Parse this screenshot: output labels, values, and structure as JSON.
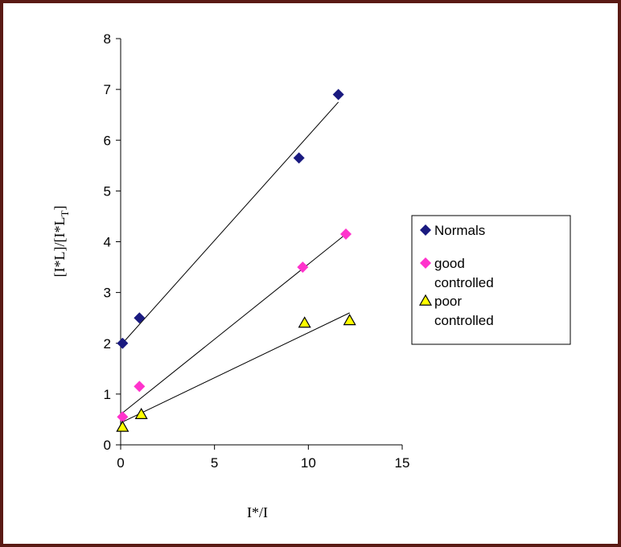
{
  "chart_data": {
    "type": "scatter",
    "title": "",
    "xlabel": "I*/I",
    "ylabel": {
      "part1": "[I*L",
      "part2": "]/[I*L",
      "sub": "T",
      "part3": "]"
    },
    "xlim": [
      0,
      15
    ],
    "ylim": [
      0,
      8
    ],
    "xticks": [
      "0",
      "5",
      "10",
      "15"
    ],
    "yticks": [
      "0",
      "1",
      "2",
      "3",
      "4",
      "5",
      "6",
      "7",
      "8"
    ],
    "grid": false,
    "legend_position": "right",
    "series": [
      {
        "name": "Normals",
        "marker": "diamond",
        "color": "#1a1a80",
        "points": [
          [
            0.1,
            2.0
          ],
          [
            1.0,
            2.5
          ],
          [
            9.5,
            5.65
          ],
          [
            11.6,
            6.9
          ]
        ],
        "trendline": [
          [
            0.1,
            2.0
          ],
          [
            11.6,
            6.75
          ]
        ]
      },
      {
        "name": "good controlled",
        "legend_lines": [
          "good",
          "controlled"
        ],
        "marker": "diamond",
        "color": "#ff33cc",
        "points": [
          [
            0.1,
            0.55
          ],
          [
            1.0,
            1.15
          ],
          [
            9.7,
            3.5
          ],
          [
            12.0,
            4.15
          ]
        ],
        "trendline": [
          [
            0.1,
            0.63
          ],
          [
            12.0,
            4.15
          ]
        ]
      },
      {
        "name": "poor controlled",
        "legend_lines": [
          "poor",
          "controlled"
        ],
        "marker": "triangle",
        "color": "#ffff00",
        "stroke": "#000000",
        "points": [
          [
            0.1,
            0.35
          ],
          [
            1.1,
            0.6
          ],
          [
            9.8,
            2.4
          ],
          [
            12.2,
            2.45
          ]
        ],
        "trendline": [
          [
            0.1,
            0.45
          ],
          [
            12.2,
            2.6
          ]
        ]
      }
    ]
  }
}
